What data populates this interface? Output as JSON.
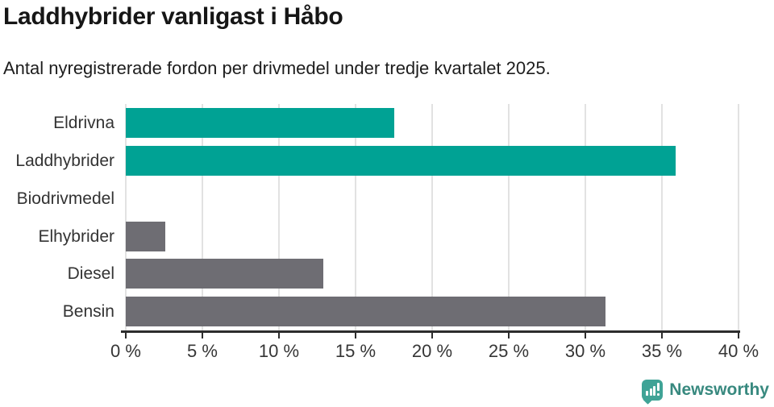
{
  "header": {
    "title": "Laddhybrider vanligast i Håbo",
    "subtitle": "Antal nyregistrerade fordon per drivmedel under tredje kvartalet 2025."
  },
  "chart_data": {
    "type": "bar",
    "orientation": "horizontal",
    "title": "Laddhybrider vanligast i Håbo",
    "subtitle": "Antal nyregistrerade fordon per drivmedel under tredje kvartalet 2025.",
    "categories": [
      "Eldrivna",
      "Laddhybrider",
      "Biodrivmedel",
      "Elhybrider",
      "Diesel",
      "Bensin"
    ],
    "values": [
      17.5,
      35.9,
      0,
      2.6,
      12.9,
      31.3
    ],
    "unit": "%",
    "bar_colors": [
      "#00a294",
      "#00a294",
      "#6e6d73",
      "#6e6d73",
      "#6e6d73",
      "#6e6d73"
    ],
    "xlabel": "",
    "ylabel": "",
    "xlim": [
      0,
      40
    ],
    "xtick_labels": [
      "0 %",
      "5 %",
      "10 %",
      "15 %",
      "20 %",
      "25 %",
      "30 %",
      "35 %",
      "40 %"
    ],
    "grid": true,
    "legend": "none"
  },
  "footer": {
    "brand": "Newsworthy",
    "logo_icon": "bar-chart-speech-bubble",
    "logo_color": "#3fa396",
    "brand_text_color": "#38897f"
  },
  "colors": {
    "accent_teal": "#00a294",
    "neutral_gray": "#6e6d73",
    "axis": "#2c2c2c",
    "gridline": "#e2e2e2",
    "title_text": "#161616",
    "body_text": "#333333",
    "background": "#ffffff"
  }
}
